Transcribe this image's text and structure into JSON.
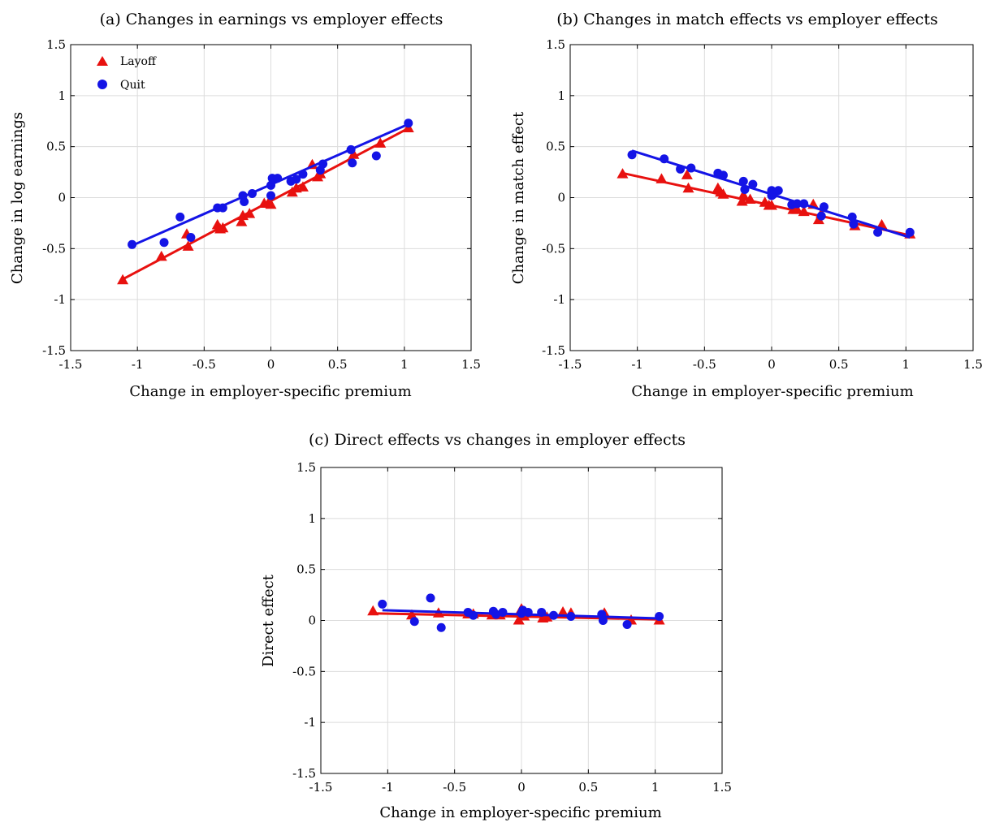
{
  "colors": {
    "layoff": "#e8110f",
    "quit": "#1414e6",
    "grid": "#dcdcdc",
    "axis": "#000000"
  },
  "chart_data": [
    {
      "type": "scatter",
      "panel": "a",
      "title": "(a) Changes in earnings vs employer effects",
      "xlabel": "Change in employer-specific premium",
      "ylabel": "Change in log earnings",
      "xlim": [
        -1.5,
        1.5
      ],
      "ylim": [
        -1.5,
        1.5
      ],
      "xticks": [
        -1.5,
        -1,
        -0.5,
        0,
        0.5,
        1,
        1.5
      ],
      "yticks": [
        -1.5,
        -1,
        -0.5,
        0,
        0.5,
        1,
        1.5
      ],
      "xtick_labels": [
        "-1.5",
        "-1",
        "-0.5",
        "0",
        "0.5",
        "1",
        "1.5"
      ],
      "ytick_labels": [
        "-1.5",
        "-1",
        "-0.5",
        "0",
        "0.5",
        "1",
        "1.5"
      ],
      "grid": true,
      "legend": {
        "placement": "top-left",
        "entries": [
          "Layoff",
          "Quit"
        ]
      },
      "series": [
        {
          "name": "Layoff",
          "marker": "triangle",
          "color": "#e8110f",
          "fit": [
            [
              -1.11,
              -0.8
            ],
            [
              1.03,
              0.68
            ]
          ],
          "points": [
            [
              -1.11,
              -0.81
            ],
            [
              -0.82,
              -0.58
            ],
            [
              -0.63,
              -0.36
            ],
            [
              -0.62,
              -0.48
            ],
            [
              -0.4,
              -0.27
            ],
            [
              -0.38,
              -0.31
            ],
            [
              -0.36,
              -0.3
            ],
            [
              -0.22,
              -0.24
            ],
            [
              -0.21,
              -0.18
            ],
            [
              -0.16,
              -0.16
            ],
            [
              -0.05,
              -0.06
            ],
            [
              -0.02,
              -0.06
            ],
            [
              0,
              -0.07
            ],
            [
              0.16,
              0.05
            ],
            [
              0.19,
              0.09
            ],
            [
              0.24,
              0.1
            ],
            [
              0.31,
              0.32
            ],
            [
              0.35,
              0.2
            ],
            [
              0.37,
              0.23
            ],
            [
              0.62,
              0.42
            ],
            [
              0.82,
              0.53
            ],
            [
              1.03,
              0.68
            ]
          ]
        },
        {
          "name": "Quit",
          "marker": "circle",
          "color": "#1414e6",
          "fit": [
            [
              -1.04,
              -0.47
            ],
            [
              1.03,
              0.72
            ]
          ],
          "points": [
            [
              -1.04,
              -0.46
            ],
            [
              -0.8,
              -0.44
            ],
            [
              -0.68,
              -0.19
            ],
            [
              -0.6,
              -0.39
            ],
            [
              -0.4,
              -0.1
            ],
            [
              -0.36,
              -0.1
            ],
            [
              -0.21,
              0.02
            ],
            [
              -0.2,
              -0.04
            ],
            [
              -0.14,
              0.04
            ],
            [
              0,
              0.02
            ],
            [
              0,
              0.12
            ],
            [
              0.01,
              0.19
            ],
            [
              0.05,
              0.19
            ],
            [
              0.15,
              0.16
            ],
            [
              0.19,
              0.18
            ],
            [
              0.24,
              0.23
            ],
            [
              0.37,
              0.27
            ],
            [
              0.39,
              0.33
            ],
            [
              0.6,
              0.47
            ],
            [
              0.61,
              0.34
            ],
            [
              0.79,
              0.41
            ],
            [
              1.03,
              0.73
            ]
          ]
        }
      ]
    },
    {
      "type": "scatter",
      "panel": "b",
      "title": "(b) Changes in match effects vs employer effects",
      "xlabel": "Change in employer-specific premium",
      "ylabel": "Change in match effect",
      "xlim": [
        -1.5,
        1.5
      ],
      "ylim": [
        -1.5,
        1.5
      ],
      "xticks": [
        -1.5,
        -1,
        -0.5,
        0,
        0.5,
        1,
        1.5
      ],
      "yticks": [
        -1.5,
        -1,
        -0.5,
        0,
        0.5,
        1,
        1.5
      ],
      "xtick_labels": [
        "-1.5",
        "-1",
        "-0.5",
        "0",
        "0.5",
        "1",
        "1.5"
      ],
      "ytick_labels": [
        "-1.5",
        "-1",
        "-0.5",
        "0",
        "0.5",
        "1",
        "1.5"
      ],
      "grid": true,
      "series": [
        {
          "name": "Layoff",
          "marker": "triangle",
          "color": "#e8110f",
          "fit": [
            [
              -1.11,
              0.24
            ],
            [
              1.03,
              -0.37
            ]
          ],
          "points": [
            [
              -1.11,
              0.23
            ],
            [
              -0.82,
              0.18
            ],
            [
              -0.63,
              0.22
            ],
            [
              -0.62,
              0.09
            ],
            [
              -0.4,
              0.09
            ],
            [
              -0.38,
              0.05
            ],
            [
              -0.36,
              0.03
            ],
            [
              -0.22,
              -0.04
            ],
            [
              -0.21,
              0.02
            ],
            [
              -0.16,
              -0.02
            ],
            [
              -0.05,
              -0.05
            ],
            [
              -0.02,
              -0.08
            ],
            [
              0,
              -0.08
            ],
            [
              0.16,
              -0.12
            ],
            [
              0.19,
              -0.12
            ],
            [
              0.24,
              -0.14
            ],
            [
              0.31,
              -0.07
            ],
            [
              0.35,
              -0.22
            ],
            [
              0.37,
              -0.16
            ],
            [
              0.62,
              -0.28
            ],
            [
              0.82,
              -0.27
            ],
            [
              1.03,
              -0.36
            ]
          ]
        },
        {
          "name": "Quit",
          "marker": "circle",
          "color": "#1414e6",
          "fit": [
            [
              -1.04,
              0.46
            ],
            [
              1.03,
              -0.39
            ]
          ],
          "points": [
            [
              -1.04,
              0.42
            ],
            [
              -0.8,
              0.38
            ],
            [
              -0.68,
              0.28
            ],
            [
              -0.6,
              0.29
            ],
            [
              -0.4,
              0.24
            ],
            [
              -0.36,
              0.22
            ],
            [
              -0.21,
              0.16
            ],
            [
              -0.2,
              0.08
            ],
            [
              -0.14,
              0.13
            ],
            [
              0,
              0.02
            ],
            [
              0,
              0.07
            ],
            [
              0.01,
              0.03
            ],
            [
              0.05,
              0.07
            ],
            [
              0.15,
              -0.07
            ],
            [
              0.19,
              -0.06
            ],
            [
              0.24,
              -0.06
            ],
            [
              0.37,
              -0.18
            ],
            [
              0.39,
              -0.09
            ],
            [
              0.6,
              -0.19
            ],
            [
              0.61,
              -0.26
            ],
            [
              0.79,
              -0.34
            ],
            [
              1.03,
              -0.34
            ]
          ]
        }
      ]
    },
    {
      "type": "scatter",
      "panel": "c",
      "title": "(c) Direct effects vs changes in employer effects",
      "xlabel": "Change in employer-specific premium",
      "ylabel": "Direct effect",
      "xlim": [
        -1.5,
        1.5
      ],
      "ylim": [
        -1.5,
        1.5
      ],
      "xticks": [
        -1.5,
        -1,
        -0.5,
        0,
        0.5,
        1,
        1.5
      ],
      "yticks": [
        -1.5,
        -1,
        -0.5,
        0,
        0.5,
        1,
        1.5
      ],
      "xtick_labels": [
        "-1.5",
        "-1",
        "-0.5",
        "0",
        "0.5",
        "1",
        "1.5"
      ],
      "ytick_labels": [
        "-1.5",
        "-1",
        "-0.5",
        "0",
        "0.5",
        "1",
        "1.5"
      ],
      "grid": true,
      "series": [
        {
          "name": "Layoff",
          "marker": "triangle",
          "color": "#e8110f",
          "fit": [
            [
              -1.11,
              0.07
            ],
            [
              1.03,
              0.01
            ]
          ],
          "points": [
            [
              -1.11,
              0.09
            ],
            [
              -0.82,
              0.05
            ],
            [
              -0.62,
              0.07
            ],
            [
              -0.4,
              0.06
            ],
            [
              -0.36,
              0.06
            ],
            [
              -0.22,
              0.05
            ],
            [
              -0.16,
              0.05
            ],
            [
              -0.02,
              0.0
            ],
            [
              0,
              0.11
            ],
            [
              0.02,
              0.04
            ],
            [
              0.16,
              0.02
            ],
            [
              0.19,
              0.03
            ],
            [
              0.31,
              0.08
            ],
            [
              0.37,
              0.07
            ],
            [
              0.62,
              0.07
            ],
            [
              0.82,
              0.0
            ],
            [
              1.03,
              0.0
            ]
          ]
        },
        {
          "name": "Quit",
          "marker": "circle",
          "color": "#1414e6",
          "fit": [
            [
              -1.04,
              0.1
            ],
            [
              1.03,
              0.02
            ]
          ],
          "points": [
            [
              -1.04,
              0.16
            ],
            [
              -0.8,
              -0.01
            ],
            [
              -0.68,
              0.22
            ],
            [
              -0.6,
              -0.07
            ],
            [
              -0.4,
              0.08
            ],
            [
              -0.36,
              0.05
            ],
            [
              -0.21,
              0.09
            ],
            [
              -0.19,
              0.06
            ],
            [
              -0.14,
              0.08
            ],
            [
              0,
              0.07
            ],
            [
              0.01,
              0.1
            ],
            [
              0.05,
              0.08
            ],
            [
              0.15,
              0.08
            ],
            [
              0.24,
              0.05
            ],
            [
              0.37,
              0.04
            ],
            [
              0.6,
              0.06
            ],
            [
              0.61,
              0.0
            ],
            [
              0.79,
              -0.04
            ],
            [
              1.03,
              0.04
            ]
          ]
        }
      ]
    }
  ]
}
